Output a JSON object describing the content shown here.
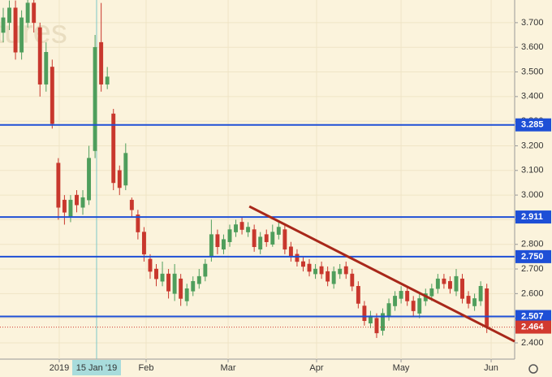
{
  "chart_data": {
    "type": "candlestick",
    "watermark": "tures",
    "categories": [
      null,
      null,
      null,
      null,
      null,
      null,
      null,
      null,
      null,
      null,
      null,
      null,
      null,
      null,
      null,
      null,
      null,
      null,
      null,
      null,
      null,
      null,
      null,
      null,
      null,
      null,
      null,
      null,
      null,
      null,
      null,
      null,
      null,
      null,
      null,
      null,
      null,
      null,
      null,
      null,
      null,
      null,
      null,
      null,
      null,
      null,
      null,
      null,
      null,
      null,
      null,
      null,
      null,
      null,
      null,
      null,
      null,
      null,
      null,
      null,
      null,
      null,
      null,
      null,
      null,
      null,
      null,
      null,
      null,
      null,
      null,
      null,
      null,
      null,
      null,
      null,
      null,
      null,
      null,
      null
    ],
    "open": [
      3.66,
      3.7,
      3.76,
      3.58,
      3.7,
      3.78,
      3.68,
      3.45,
      3.52,
      3.13,
      2.98,
      2.91,
      3.0,
      2.95,
      2.98,
      3.18,
      3.62,
      3.45,
      3.33,
      3.1,
      3.04,
      2.98,
      2.92,
      2.85,
      2.74,
      2.7,
      2.65,
      2.68,
      2.6,
      2.66,
      2.57,
      2.61,
      2.64,
      2.67,
      2.75,
      2.84,
      2.78,
      2.81,
      2.85,
      2.89,
      2.85,
      2.86,
      2.78,
      2.84,
      2.8,
      2.84,
      2.86,
      2.79,
      2.76,
      2.73,
      2.72,
      2.68,
      2.71,
      2.69,
      2.64,
      2.68,
      2.71,
      2.68,
      2.63,
      2.55,
      2.48,
      2.5,
      2.45,
      2.51,
      2.55,
      2.58,
      2.61,
      2.57,
      2.52,
      2.57,
      2.59,
      2.62,
      2.66,
      2.65,
      2.61,
      2.66,
      2.59,
      2.55,
      2.57,
      2.62
    ],
    "high": [
      3.76,
      3.79,
      3.79,
      3.75,
      3.8,
      3.8,
      3.7,
      3.62,
      3.55,
      3.15,
      3.0,
      3.0,
      3.02,
      3.02,
      3.2,
      3.65,
      3.78,
      3.52,
      3.35,
      3.12,
      3.21,
      2.99,
      2.94,
      2.87,
      2.76,
      2.72,
      2.73,
      2.7,
      2.72,
      2.68,
      2.64,
      2.67,
      2.7,
      2.74,
      2.9,
      2.86,
      2.84,
      2.88,
      2.9,
      2.91,
      2.89,
      2.88,
      2.85,
      2.86,
      2.88,
      2.89,
      2.88,
      2.81,
      2.78,
      2.75,
      2.74,
      2.72,
      2.73,
      2.71,
      2.71,
      2.72,
      2.73,
      2.7,
      2.65,
      2.57,
      2.53,
      2.52,
      2.54,
      2.58,
      2.61,
      2.63,
      2.63,
      2.59,
      2.6,
      2.62,
      2.64,
      2.68,
      2.68,
      2.67,
      2.7,
      2.68,
      2.61,
      2.6,
      2.65,
      2.64
    ],
    "low": [
      3.62,
      3.67,
      3.55,
      3.55,
      3.68,
      3.66,
      3.4,
      3.42,
      3.27,
      2.9,
      2.88,
      2.89,
      2.93,
      2.92,
      2.96,
      3.15,
      3.42,
      3.43,
      3.02,
      3.0,
      3.02,
      2.91,
      2.82,
      2.73,
      2.66,
      2.63,
      2.63,
      2.58,
      2.57,
      2.55,
      2.55,
      2.59,
      2.62,
      2.65,
      2.73,
      2.76,
      2.76,
      2.79,
      2.83,
      2.84,
      2.83,
      2.77,
      2.76,
      2.79,
      2.79,
      2.82,
      2.76,
      2.73,
      2.71,
      2.69,
      2.67,
      2.66,
      2.66,
      2.63,
      2.62,
      2.66,
      2.66,
      2.61,
      2.54,
      2.47,
      2.46,
      2.42,
      2.43,
      2.49,
      2.53,
      2.56,
      2.55,
      2.51,
      2.5,
      2.55,
      2.57,
      2.6,
      2.62,
      2.6,
      2.59,
      2.56,
      2.54,
      2.53,
      2.55,
      2.44
    ],
    "close": [
      3.72,
      3.76,
      3.58,
      3.72,
      3.78,
      3.7,
      3.45,
      3.58,
      3.29,
      2.95,
      2.93,
      2.98,
      2.96,
      2.99,
      3.15,
      3.6,
      3.45,
      3.48,
      3.05,
      3.03,
      3.17,
      2.94,
      2.85,
      2.76,
      2.69,
      2.66,
      2.68,
      2.61,
      2.68,
      2.58,
      2.62,
      2.65,
      2.67,
      2.72,
      2.84,
      2.79,
      2.82,
      2.86,
      2.88,
      2.86,
      2.87,
      2.79,
      2.83,
      2.81,
      2.85,
      2.87,
      2.78,
      2.75,
      2.73,
      2.71,
      2.69,
      2.7,
      2.68,
      2.65,
      2.69,
      2.7,
      2.68,
      2.63,
      2.56,
      2.49,
      2.51,
      2.44,
      2.52,
      2.56,
      2.59,
      2.61,
      2.57,
      2.53,
      2.58,
      2.6,
      2.62,
      2.66,
      2.64,
      2.62,
      2.67,
      2.58,
      2.56,
      2.58,
      2.63,
      2.464
    ],
    "up_color": "#4f9e5c",
    "down_color": "#c8372d",
    "xlim": [
      -0.53,
      83.55
    ],
    "ylim": [
      2.334,
      3.792
    ],
    "yticks": [
      {
        "value": 2.4,
        "label": "2.400"
      },
      {
        "value": 2.5,
        "label": "2.500"
      },
      {
        "value": 2.6,
        "label": "2.600"
      },
      {
        "value": 2.7,
        "label": "2.700"
      },
      {
        "value": 2.8,
        "label": "2.800"
      },
      {
        "value": 2.9,
        "label": "2.900"
      },
      {
        "value": 3.0,
        "label": "3.000"
      },
      {
        "value": 3.1,
        "label": "3.100"
      },
      {
        "value": 3.2,
        "label": "3.200"
      },
      {
        "value": 3.3,
        "label": "3.300"
      },
      {
        "value": 3.4,
        "label": "3.400"
      },
      {
        "value": 3.5,
        "label": "3.500"
      },
      {
        "value": 3.6,
        "label": "3.600"
      },
      {
        "value": 3.7,
        "label": "3.700"
      }
    ],
    "xticks": [
      {
        "value": 9.15,
        "label": "2019"
      },
      {
        "value": 23.34,
        "label": "Feb"
      },
      {
        "value": 36.74,
        "label": "Mar"
      },
      {
        "value": 51.19,
        "label": "Apr"
      },
      {
        "value": 64.99,
        "label": "May"
      },
      {
        "value": 79.71,
        "label": "Jun"
      }
    ],
    "crosshair": {
      "value": 15.25,
      "label": "15 Jan '19"
    },
    "levels": [
      {
        "value": 3.285,
        "label": "3.285"
      },
      {
        "value": 2.911,
        "label": "2.911"
      },
      {
        "value": 2.75,
        "label": "2.750"
      },
      {
        "value": 2.507,
        "label": "2.507"
      }
    ],
    "level_color": "#1e4fd6",
    "last_price": {
      "value": 2.464,
      "label": "2.464",
      "color": "#d23a2f"
    },
    "trendline": {
      "x": [
        40.2,
        83.55
      ],
      "y": [
        2.954,
        2.406
      ],
      "color": "#a8281a"
    }
  }
}
